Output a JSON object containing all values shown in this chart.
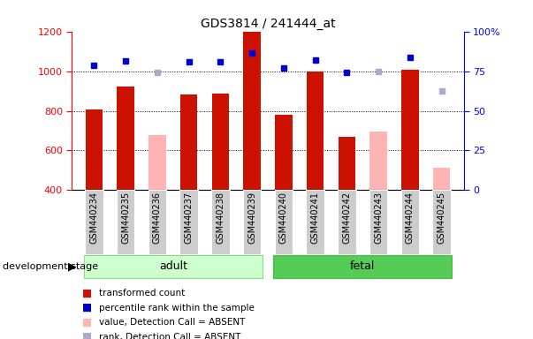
{
  "title": "GDS3814 / 241444_at",
  "samples": [
    "GSM440234",
    "GSM440235",
    "GSM440236",
    "GSM440237",
    "GSM440238",
    "GSM440239",
    "GSM440240",
    "GSM440241",
    "GSM440242",
    "GSM440243",
    "GSM440244",
    "GSM440245"
  ],
  "bar_values": [
    810,
    925,
    null,
    885,
    890,
    1200,
    780,
    1000,
    670,
    null,
    1010,
    null
  ],
  "bar_absent": [
    null,
    null,
    680,
    null,
    null,
    null,
    null,
    null,
    null,
    695,
    null,
    510
  ],
  "rank_values": [
    1030,
    1055,
    null,
    1050,
    1050,
    1095,
    1020,
    1060,
    995,
    null,
    1070,
    null
  ],
  "rank_absent": [
    null,
    null,
    995,
    null,
    null,
    null,
    null,
    null,
    null,
    1000,
    null,
    900
  ],
  "adult_group": [
    0,
    5
  ],
  "fetal_group": [
    6,
    11
  ],
  "bar_color": "#cc1100",
  "absent_bar_color": "#ffb3b3",
  "rank_color": "#0000cc",
  "absent_rank_color": "#aaaacc",
  "adult_fill": "#ccffcc",
  "adult_darker": "#88dd88",
  "fetal_fill": "#55cc55",
  "fetal_darker": "#44bb44",
  "gray_box": "#cccccc",
  "ylim_left": [
    400,
    1200
  ],
  "ylim_right": [
    0,
    100
  ],
  "yticks_left": [
    400,
    600,
    800,
    1000,
    1200
  ],
  "yticks_right": [
    0,
    25,
    50,
    75,
    100
  ],
  "grid_lines": [
    600,
    800,
    1000
  ],
  "bar_width": 0.55,
  "legend_items": [
    [
      "#cc1100",
      "transformed count"
    ],
    [
      "#0000cc",
      "percentile rank within the sample"
    ],
    [
      "#ffb3b3",
      "value, Detection Call = ABSENT"
    ],
    [
      "#aaaacc",
      "rank, Detection Call = ABSENT"
    ]
  ]
}
